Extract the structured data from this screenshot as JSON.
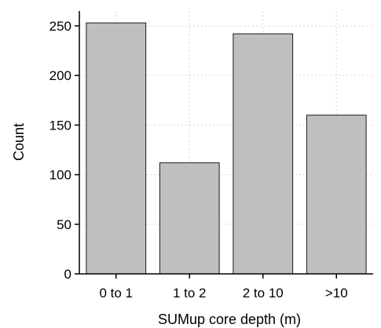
{
  "chart_data": {
    "type": "bar",
    "categories": [
      "0 to 1",
      "1 to 2",
      "2 to 10",
      ">10"
    ],
    "values": [
      253,
      112,
      242,
      160
    ],
    "xlabel": "SUMup core depth (m)",
    "ylabel": "Count",
    "ylim": [
      0,
      265
    ],
    "yticks": [
      0,
      50,
      100,
      150,
      200,
      250
    ],
    "grid": true,
    "colors": {
      "bar_fill": "#bfbfbf",
      "bar_edge": "#1a1a1a",
      "grid": "#d4d4d4"
    }
  }
}
